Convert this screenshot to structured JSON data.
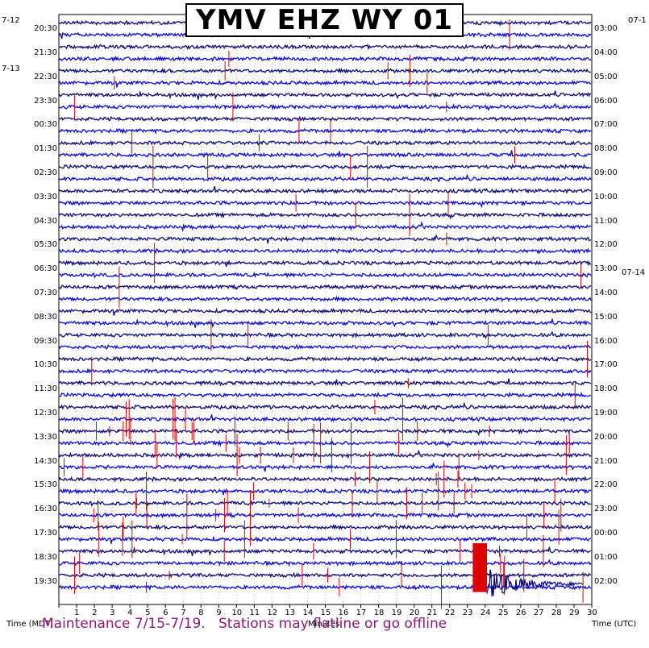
{
  "chart_data": {
    "type": "helicorder",
    "title": "YMV EHZ WY 01",
    "left_time_labels": [
      "20:30",
      "21:30",
      "22:30",
      "23:30",
      "00:30",
      "01:30",
      "02:30",
      "03:30",
      "04:30",
      "05:30",
      "06:30",
      "07:30",
      "08:30",
      "09:30",
      "10:30",
      "11:30",
      "12:30",
      "13:30",
      "14:30",
      "15:30",
      "16:30",
      "17:30",
      "18:30",
      "19:30"
    ],
    "right_time_labels": [
      "03:00",
      "04:00",
      "05:00",
      "06:00",
      "07:00",
      "08:00",
      "09:00",
      "10:00",
      "11:00",
      "12:00",
      "13:00",
      "14:00",
      "15:00",
      "16:00",
      "17:00",
      "18:00",
      "19:00",
      "20:00",
      "21:00",
      "22:00",
      "23:00",
      "00:00",
      "01:00",
      "02:00"
    ],
    "left_date_labels": [
      {
        "text": "7-12",
        "row": 0
      },
      {
        "text": "7-13",
        "row": 4
      }
    ],
    "right_date_labels": [
      {
        "text": "07-1",
        "row": 0
      },
      {
        "text": "07-14",
        "row": 21
      }
    ],
    "x_ticks": [
      "1",
      "2",
      "3",
      "4",
      "5",
      "6",
      "7",
      "8",
      "9",
      "10",
      "11",
      "12",
      "13",
      "14",
      "15",
      "16",
      "17",
      "18",
      "19",
      "20",
      "21",
      "22",
      "23",
      "24",
      "25",
      "26",
      "27",
      "28",
      "29",
      "30"
    ],
    "xlabel": "Minutes",
    "left_axis_label": "Time (MDT)",
    "right_axis_label": "Time (UTC)",
    "xlim": [
      0,
      30
    ],
    "trace_colors": [
      "#0a0a7a",
      "#0b0bd6"
    ],
    "clip_color": "#dd0000",
    "large_event": {
      "start_min": 23.3,
      "end_min": 24.1,
      "row_start": 44,
      "row_end": 48
    },
    "notice": "Maintenance 7/15-7/19.   Stations may flatline or go offline"
  }
}
